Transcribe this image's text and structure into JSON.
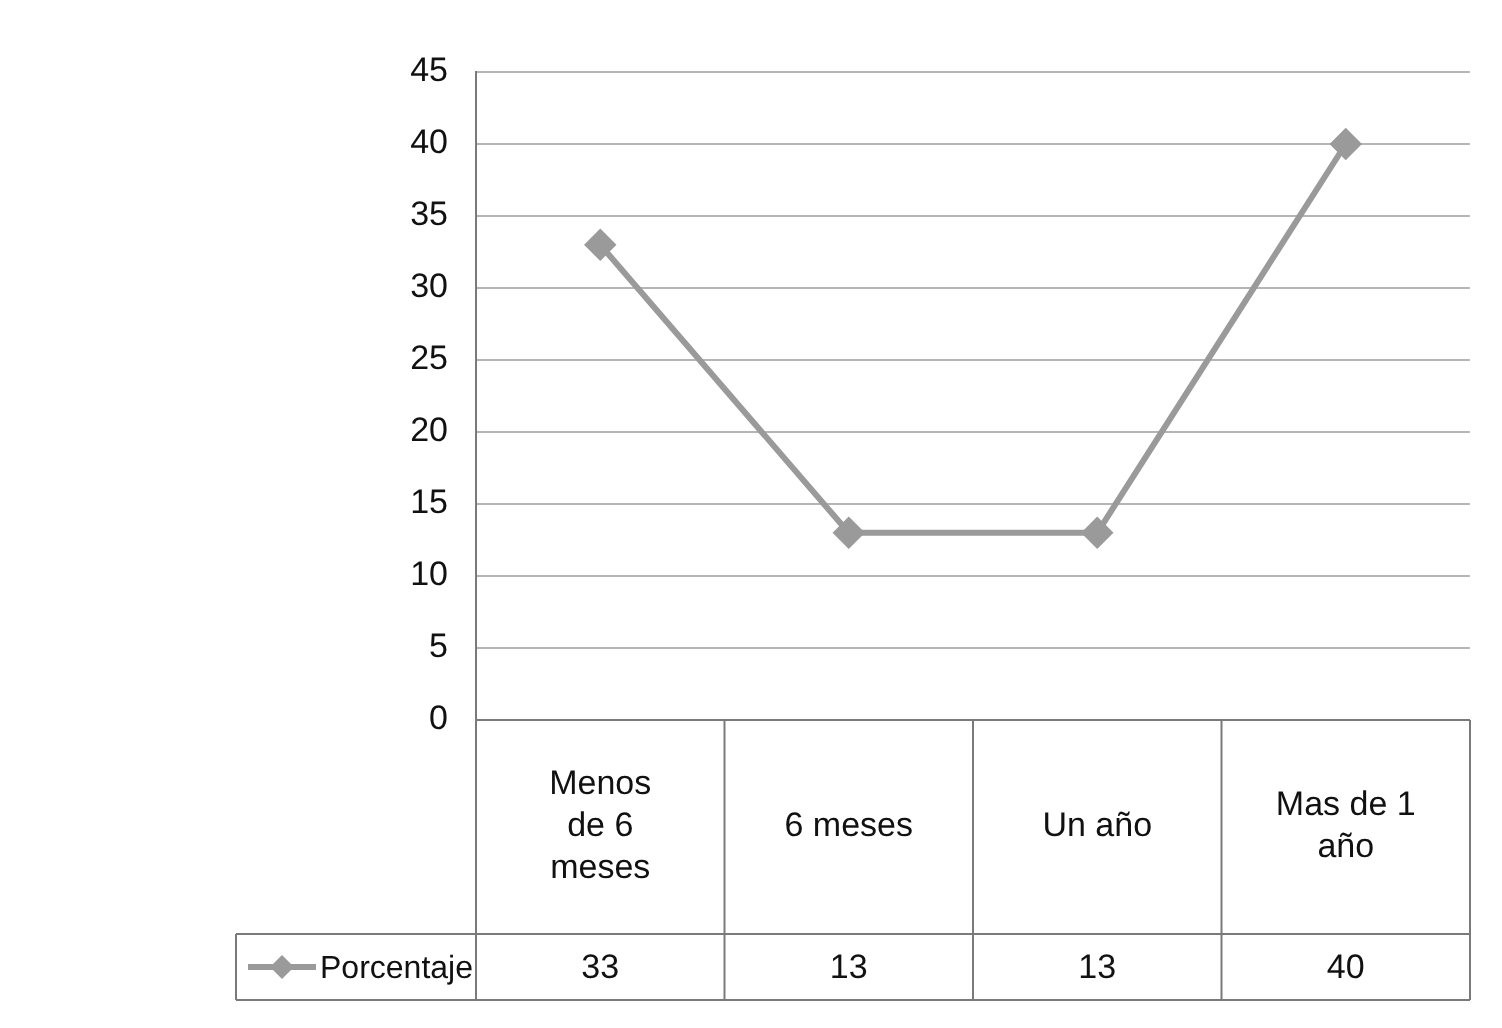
{
  "chart_data": {
    "type": "line",
    "categories": [
      "Menos de 6 meses",
      "6 meses",
      "Un año",
      "Mas de 1 año"
    ],
    "series": [
      {
        "name": "Porcentaje",
        "color": "#9a9a9a",
        "values": [
          33,
          13,
          13,
          40
        ]
      }
    ],
    "ylim": [
      0,
      45
    ],
    "yticks": [
      0,
      5,
      10,
      15,
      20,
      25,
      30,
      35,
      40,
      45
    ],
    "grid": "y",
    "legend": "bottom",
    "marker": "diamond",
    "line_style": "solid",
    "data_labels": true
  }
}
